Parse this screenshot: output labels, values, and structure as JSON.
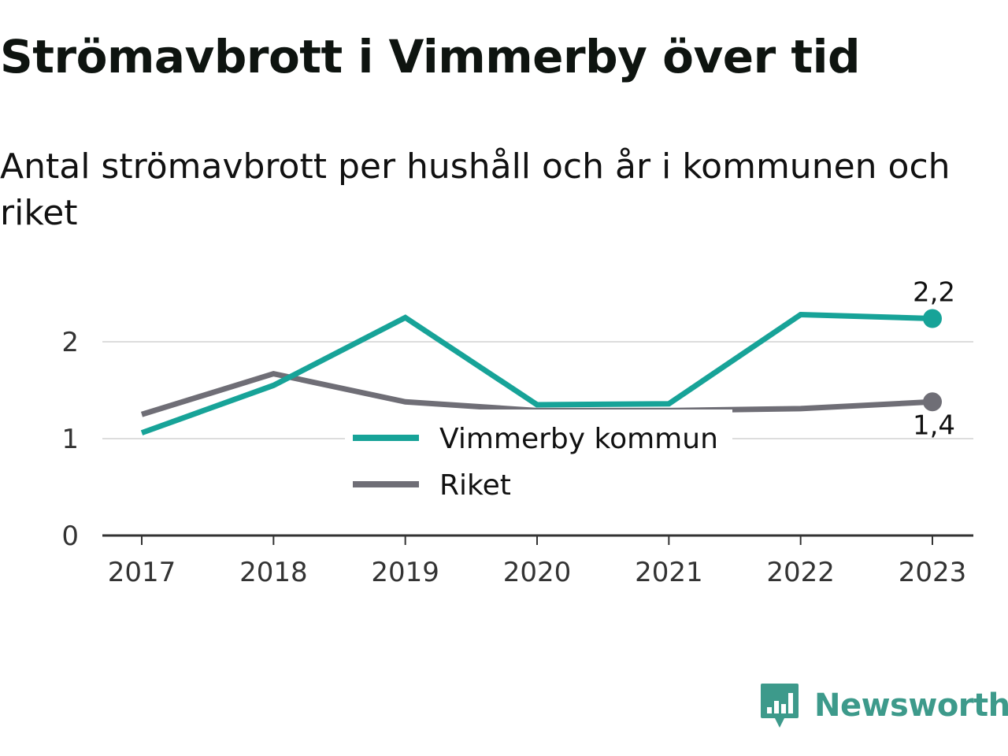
{
  "title": "Strömavbrott i Vimmerby över tid",
  "subtitle": "Antal strömavbrott per hushåll och år i kommunen och riket",
  "brand": {
    "name": "Newsworthy",
    "icon": "bar-chart-speech-bubble-icon",
    "color": "#3d9a8b"
  },
  "chart_data": {
    "type": "line",
    "x": [
      "2017",
      "2018",
      "2019",
      "2020",
      "2021",
      "2022",
      "2023"
    ],
    "ylim": [
      0,
      2.5
    ],
    "yticks": [
      0,
      1,
      2
    ],
    "ytick_labels": [
      "0",
      "1",
      "2"
    ],
    "grid": true,
    "legend_position": "center",
    "series": [
      {
        "name": "Vimmerby kommun",
        "color": "#17a398",
        "values": [
          1.06,
          1.55,
          2.25,
          1.35,
          1.36,
          2.28,
          2.24
        ],
        "end_label": "2,2"
      },
      {
        "name": "Riket",
        "color": "#6f6e76",
        "values": [
          1.25,
          1.67,
          1.38,
          1.29,
          1.29,
          1.31,
          1.38
        ],
        "end_label": "1,4"
      }
    ]
  }
}
